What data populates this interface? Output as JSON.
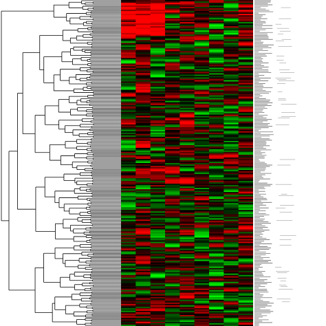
{
  "chart_data": {
    "type": "heatmap",
    "title": "",
    "xlabel": "",
    "ylabel": "",
    "columns": 9,
    "rows": 236,
    "colormap": {
      "low": "#00ff00",
      "mid": "#000000",
      "high": "#ff0000"
    },
    "value_range": [
      -1,
      1
    ],
    "clustering": "hierarchical",
    "row_dendrogram": "left",
    "row_labels_side": "right",
    "row_labels_legible": false,
    "note": ""
  }
}
